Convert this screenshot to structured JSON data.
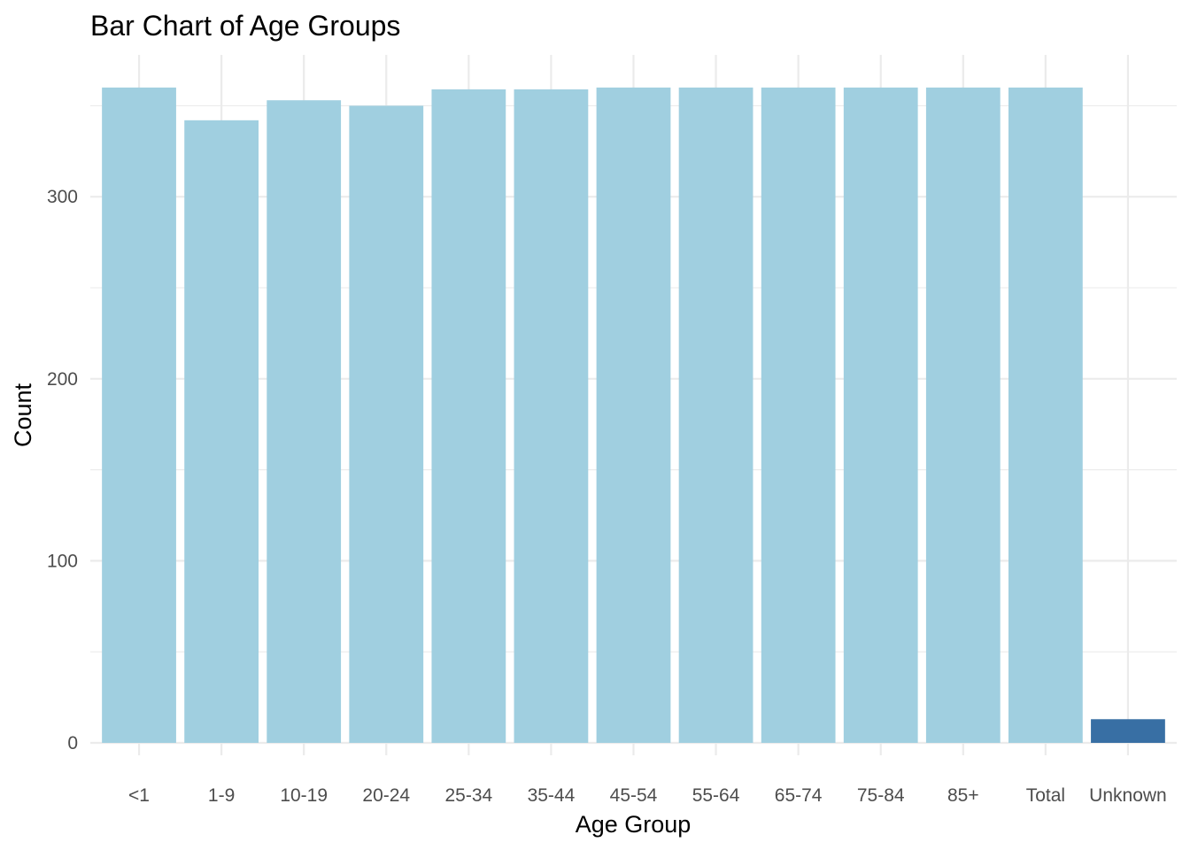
{
  "chart_data": {
    "type": "bar",
    "title": "Bar Chart of Age Groups",
    "xlabel": "Age Group",
    "ylabel": "Count",
    "categories": [
      "<1",
      "1-9",
      "10-19",
      "20-24",
      "25-34",
      "35-44",
      "45-54",
      "55-64",
      "65-74",
      "75-84",
      "85+",
      "Total",
      "Unknown"
    ],
    "values": [
      360,
      342,
      353,
      350,
      359,
      359,
      360,
      360,
      360,
      360,
      360,
      360,
      13
    ],
    "bar_colors": [
      "#a0cfe0",
      "#a0cfe0",
      "#a0cfe0",
      "#a0cfe0",
      "#a0cfe0",
      "#a0cfe0",
      "#a0cfe0",
      "#a0cfe0",
      "#a0cfe0",
      "#a0cfe0",
      "#a0cfe0",
      "#a0cfe0",
      "#386fa4"
    ],
    "ylim": [
      0,
      360
    ],
    "yticks": [
      0,
      100,
      200,
      300
    ],
    "grid": true,
    "legend": "none"
  }
}
